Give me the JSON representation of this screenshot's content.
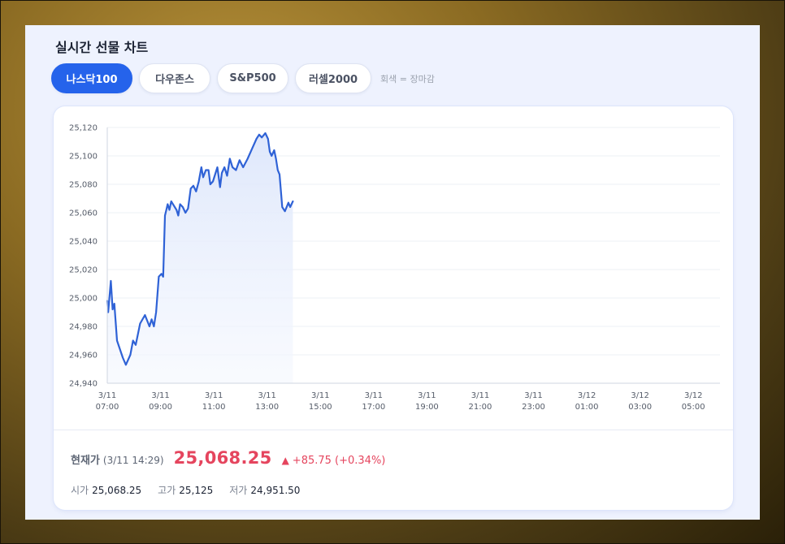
{
  "title": "실시간 선물 차트",
  "tabs": [
    {
      "label": "나스닥100",
      "active": true
    },
    {
      "label": "다우존스",
      "active": false
    },
    {
      "label": "S&P500",
      "active": false
    },
    {
      "label": "러셀2000",
      "active": false
    }
  ],
  "legend_note": "회색 = 장마감",
  "colors": {
    "accent": "#2563eb",
    "line": "#2f62d6",
    "up": "#e5455e"
  },
  "chart_data": {
    "type": "line",
    "series_name": "나스닥100",
    "y_ticks": [
      "25,120",
      "25,100",
      "25,080",
      "25,060",
      "25,040",
      "25,020",
      "25,000",
      "24,980",
      "24,960",
      "24,940"
    ],
    "ylim": [
      24940,
      25120
    ],
    "x_ticks": [
      {
        "date": "3/11",
        "time": "07:00"
      },
      {
        "date": "3/11",
        "time": "09:00"
      },
      {
        "date": "3/11",
        "time": "11:00"
      },
      {
        "date": "3/11",
        "time": "13:00"
      },
      {
        "date": "3/11",
        "time": "15:00"
      },
      {
        "date": "3/11",
        "time": "17:00"
      },
      {
        "date": "3/11",
        "time": "19:00"
      },
      {
        "date": "3/11",
        "time": "21:00"
      },
      {
        "date": "3/11",
        "time": "23:00"
      },
      {
        "date": "3/12",
        "time": "01:00"
      },
      {
        "date": "3/12",
        "time": "03:00"
      },
      {
        "date": "3/12",
        "time": "05:00"
      }
    ],
    "xlim": [
      "3/11 07:00",
      "3/12 06:00"
    ],
    "grid": true,
    "points": [
      [
        "3/11 07:00",
        24998
      ],
      [
        "3/11 07:02",
        24990
      ],
      [
        "3/11 07:08",
        25012
      ],
      [
        "3/11 07:12",
        24992
      ],
      [
        "3/11 07:16",
        24996
      ],
      [
        "3/11 07:22",
        24970
      ],
      [
        "3/11 07:35",
        24958
      ],
      [
        "3/11 07:42",
        24953
      ],
      [
        "3/11 07:52",
        24960
      ],
      [
        "3/11 07:58",
        24970
      ],
      [
        "3/11 08:04",
        24967
      ],
      [
        "3/11 08:14",
        24982
      ],
      [
        "3/11 08:25",
        24988
      ],
      [
        "3/11 08:35",
        24980
      ],
      [
        "3/11 08:40",
        24985
      ],
      [
        "3/11 08:45",
        24980
      ],
      [
        "3/11 08:50",
        24990
      ],
      [
        "3/11 08:56",
        25015
      ],
      [
        "3/11 09:02",
        25017
      ],
      [
        "3/11 09:06",
        25015
      ],
      [
        "3/11 09:10",
        25058
      ],
      [
        "3/11 09:13",
        25062
      ],
      [
        "3/11 09:16",
        25066
      ],
      [
        "3/11 09:20",
        25062
      ],
      [
        "3/11 09:24",
        25068
      ],
      [
        "3/11 09:30",
        25065
      ],
      [
        "3/11 09:36",
        25062
      ],
      [
        "3/11 09:40",
        25058
      ],
      [
        "3/11 09:44",
        25066
      ],
      [
        "3/11 09:50",
        25064
      ],
      [
        "3/11 09:56",
        25060
      ],
      [
        "3/11 10:02",
        25063
      ],
      [
        "3/11 10:08",
        25077
      ],
      [
        "3/11 10:14",
        25079
      ],
      [
        "3/11 10:20",
        25075
      ],
      [
        "3/11 10:26",
        25082
      ],
      [
        "3/11 10:32",
        25092
      ],
      [
        "3/11 10:36",
        25085
      ],
      [
        "3/11 10:42",
        25090
      ],
      [
        "3/11 10:48",
        25090
      ],
      [
        "3/11 10:52",
        25080
      ],
      [
        "3/11 10:58",
        25082
      ],
      [
        "3/11 11:02",
        25086
      ],
      [
        "3/11 11:08",
        25092
      ],
      [
        "3/11 11:14",
        25078
      ],
      [
        "3/11 11:18",
        25088
      ],
      [
        "3/11 11:24",
        25092
      ],
      [
        "3/11 11:30",
        25086
      ],
      [
        "3/11 11:36",
        25098
      ],
      [
        "3/11 11:42",
        25092
      ],
      [
        "3/11 11:50",
        25090
      ],
      [
        "3/11 11:58",
        25097
      ],
      [
        "3/11 12:06",
        25092
      ],
      [
        "3/11 12:16",
        25098
      ],
      [
        "3/11 12:26",
        25105
      ],
      [
        "3/11 12:36",
        25112
      ],
      [
        "3/11 12:42",
        25115
      ],
      [
        "3/11 12:48",
        25113
      ],
      [
        "3/11 12:56",
        25116
      ],
      [
        "3/11 13:02",
        25112
      ],
      [
        "3/11 13:06",
        25103
      ],
      [
        "3/11 13:10",
        25100
      ],
      [
        "3/11 13:16",
        25104
      ],
      [
        "3/11 13:20",
        25098
      ],
      [
        "3/11 13:24",
        25090
      ],
      [
        "3/11 13:28",
        25087
      ],
      [
        "3/11 13:34",
        25064
      ],
      [
        "3/11 13:40",
        25061
      ],
      [
        "3/11 13:48",
        25067
      ],
      [
        "3/11 13:52",
        25064
      ],
      [
        "3/11 13:58",
        25068
      ]
    ]
  },
  "price": {
    "label": "현재가",
    "time": "(3/11 14:29)",
    "value": "25,068.25",
    "arrow": "▲",
    "change": "+85.75 (+0.34%)"
  },
  "stats": [
    {
      "label": "시가",
      "value": "25,068.25"
    },
    {
      "label": "고가",
      "value": "25,125"
    },
    {
      "label": "저가",
      "value": "24,951.50"
    }
  ]
}
